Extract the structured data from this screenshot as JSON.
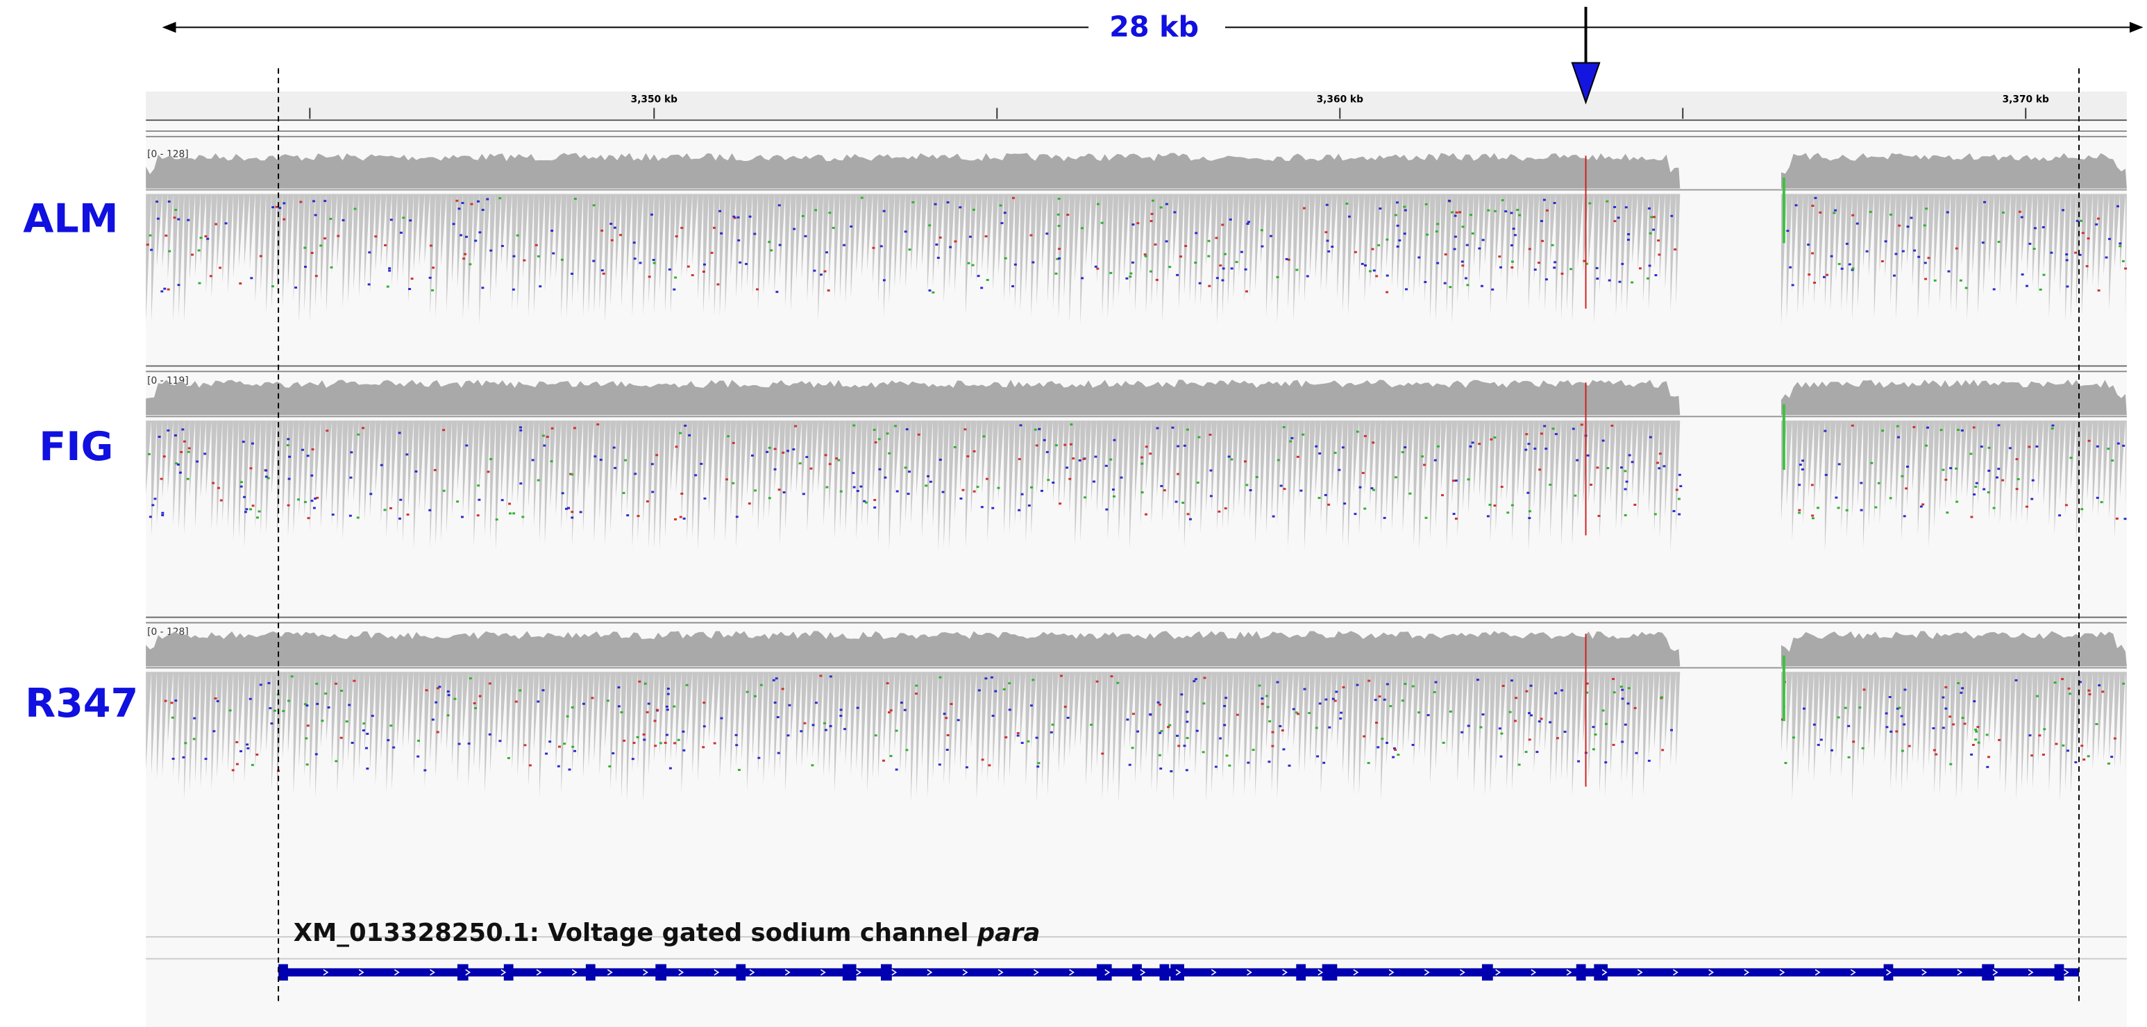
{
  "scale_label": "28 kb",
  "ruler": {
    "ticks": [
      "3,350 kb",
      "3,360 kb",
      "3,370 kb"
    ]
  },
  "tracks": [
    {
      "name": "ALM",
      "range": "[0 - 128]"
    },
    {
      "name": "FIG",
      "range": "[0 - 119]"
    },
    {
      "name": "R347",
      "range": "[0 - 128]"
    }
  ],
  "gene": {
    "label": "XM_013328250.1: Voltage gated sodium channel ",
    "label_italic": "para"
  }
}
